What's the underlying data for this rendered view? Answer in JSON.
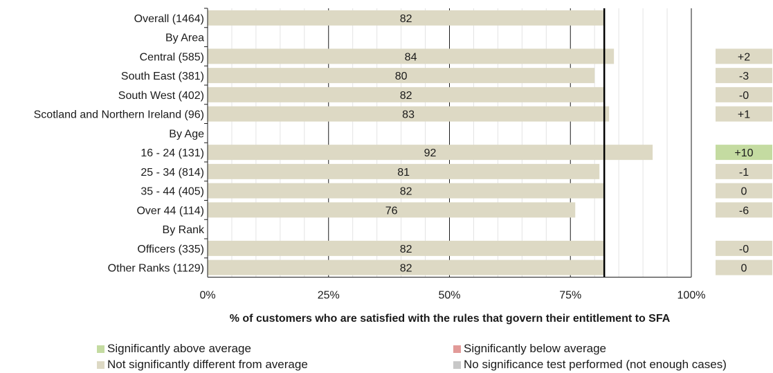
{
  "chart_data": {
    "type": "bar",
    "orientation": "horizontal",
    "categories": [
      "Overall (1464)",
      "By Area",
      "Central (585)",
      "South East (381)",
      "South West (402)",
      "Scotland and Northern Ireland (96)",
      "By Age",
      "16 - 24 (131)",
      "25 - 34 (814)",
      "35 - 44 (405)",
      "Over 44 (114)",
      "By Rank",
      "Officers (335)",
      "Other Ranks (1129)"
    ],
    "values": [
      82,
      null,
      84,
      80,
      82,
      83,
      null,
      92,
      81,
      82,
      76,
      null,
      82,
      82
    ],
    "value_labels": [
      "82",
      "",
      "84",
      "80",
      "82",
      "83",
      "",
      "92",
      "81",
      "82",
      "76",
      "",
      "82",
      "82"
    ],
    "differences": [
      "",
      "",
      "+2",
      "-3",
      "-0",
      "+1",
      "",
      "+10",
      "-1",
      "0",
      "-6",
      "",
      "-0",
      "0"
    ],
    "difference_status": [
      "",
      "",
      "not_significant",
      "not_significant",
      "not_significant",
      "not_significant",
      "",
      "above",
      "not_significant",
      "not_significant",
      "not_significant",
      "",
      "not_significant",
      "not_significant"
    ],
    "xlim": [
      0,
      100
    ],
    "x_ticks": [
      "0%",
      "25%",
      "50%",
      "75%",
      "100%"
    ],
    "average_line": 82,
    "xlabel": "% of customers who are satisfied with the rules that govern their entitlement to SFA",
    "grid": true,
    "legend_position": "bottom",
    "legend": [
      {
        "label": "Significantly above average",
        "color": "#c4dba1"
      },
      {
        "label": "Significantly below average",
        "color": "#e29a98"
      },
      {
        "label": "Not significantly different from average",
        "color": "#ddd9c4"
      },
      {
        "label": "No significance test performed (not enough cases)",
        "color": "#c8c8c8"
      }
    ],
    "colors": {
      "bar": "#ddd9c4",
      "not_significant": "#ddd9c4",
      "above": "#c4dba1",
      "below": "#e29a98"
    }
  }
}
